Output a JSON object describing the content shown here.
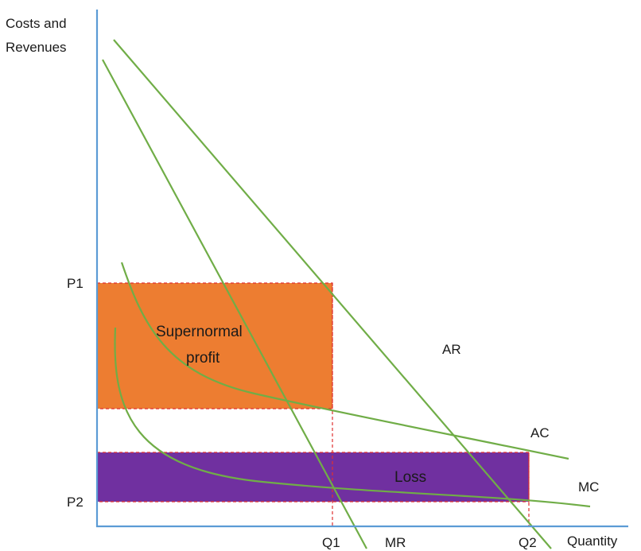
{
  "diagram": {
    "y_axis_label_line1": "Costs and",
    "y_axis_label_line2": "Revenues",
    "x_axis_label": "Quantity",
    "p1_label": "P1",
    "p2_label": "P2",
    "q1_label": "Q1",
    "q2_label": "Q2",
    "ar_label": "AR",
    "mr_label": "MR",
    "ac_label": "AC",
    "mc_label": "MC",
    "profit_label_line1": "Supernormal",
    "profit_label_line2": "profit",
    "loss_label": "Loss"
  },
  "colors": {
    "axis": "#5b9bd5",
    "curve": "#70ad47",
    "profit_fill": "#ed7d31",
    "loss_fill": "#7030a0",
    "dashed": "#e03030"
  }
}
